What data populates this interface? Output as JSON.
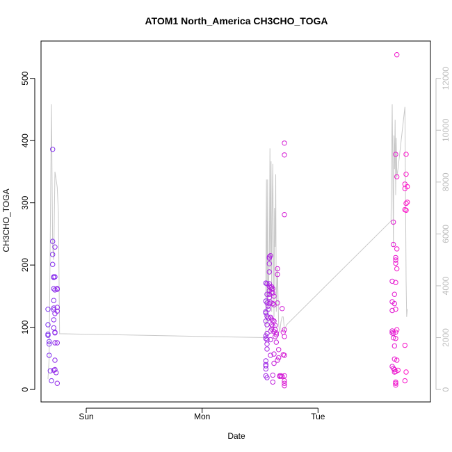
{
  "chart_data": {
    "type": "scatter",
    "title": "ATOM1 North_America CH3CHO_TOGA",
    "xlabel": "Date",
    "ylabel": "CH3CHO_TOGA",
    "x_ticks": [
      {
        "label": "Sun",
        "day": 0
      },
      {
        "label": "Mon",
        "day": 1
      },
      {
        "label": "Tue",
        "day": 2
      }
    ],
    "xlim_days": [
      -0.39,
      2.97
    ],
    "ylim": [
      -20,
      560
    ],
    "y_ticks": [
      0,
      100,
      200,
      300,
      400,
      500
    ],
    "right_axis": {
      "ticks": [
        0,
        2000,
        4000,
        6000,
        8000,
        10000,
        12000
      ],
      "ylim": [
        -480,
        13440
      ],
      "color": "#bdbdbd"
    },
    "box": true,
    "grid": false,
    "legend": "none",
    "point_color_start": "#7a2ff0",
    "point_color_end": "#ff14c8",
    "line_color": "#c8c8c8",
    "points": [
      [
        -0.33,
        129
      ],
      [
        -0.33,
        104
      ],
      [
        -0.33,
        89
      ],
      [
        -0.33,
        87
      ],
      [
        -0.32,
        77
      ],
      [
        -0.32,
        73
      ],
      [
        -0.32,
        55
      ],
      [
        -0.31,
        30
      ],
      [
        -0.3,
        14
      ],
      [
        -0.29,
        386
      ],
      [
        -0.29,
        238
      ],
      [
        -0.29,
        217
      ],
      [
        -0.29,
        201
      ],
      [
        -0.28,
        181
      ],
      [
        -0.28,
        180
      ],
      [
        -0.28,
        162
      ],
      [
        -0.28,
        143
      ],
      [
        -0.28,
        131
      ],
      [
        -0.28,
        128
      ],
      [
        -0.28,
        112
      ],
      [
        -0.28,
        99
      ],
      [
        -0.27,
        229
      ],
      [
        -0.27,
        181
      ],
      [
        -0.27,
        160
      ],
      [
        -0.27,
        122
      ],
      [
        -0.27,
        92
      ],
      [
        -0.27,
        91
      ],
      [
        -0.27,
        75
      ],
      [
        -0.27,
        47
      ],
      [
        -0.27,
        32
      ],
      [
        -0.26,
        27
      ],
      [
        -0.25,
        162
      ],
      [
        -0.25,
        161
      ],
      [
        -0.25,
        132
      ],
      [
        -0.25,
        126
      ],
      [
        -0.25,
        75
      ],
      [
        -0.25,
        10
      ],
      [
        -0.28,
        31
      ],
      [
        1.55,
        171
      ],
      [
        1.55,
        142
      ],
      [
        1.55,
        125
      ],
      [
        1.55,
        123
      ],
      [
        1.55,
        110
      ],
      [
        1.55,
        86
      ],
      [
        1.55,
        82
      ],
      [
        1.55,
        46
      ],
      [
        1.55,
        40
      ],
      [
        1.55,
        38
      ],
      [
        1.55,
        33
      ],
      [
        1.55,
        22
      ],
      [
        1.56,
        19
      ],
      [
        1.56,
        170
      ],
      [
        1.56,
        153
      ],
      [
        1.56,
        139
      ],
      [
        1.56,
        118
      ],
      [
        1.56,
        104
      ],
      [
        1.56,
        90
      ],
      [
        1.56,
        80
      ],
      [
        1.56,
        73
      ],
      [
        1.56,
        65
      ],
      [
        1.57,
        134
      ],
      [
        1.57,
        129
      ],
      [
        1.57,
        115
      ],
      [
        1.58,
        213
      ],
      [
        1.58,
        211
      ],
      [
        1.58,
        202
      ],
      [
        1.58,
        189
      ],
      [
        1.58,
        170
      ],
      [
        1.58,
        166
      ],
      [
        1.58,
        159
      ],
      [
        1.58,
        153
      ],
      [
        1.58,
        148
      ],
      [
        1.58,
        138
      ],
      [
        1.59,
        215
      ],
      [
        1.59,
        164
      ],
      [
        1.59,
        140
      ],
      [
        1.59,
        116
      ],
      [
        1.59,
        94
      ],
      [
        1.59,
        80
      ],
      [
        1.59,
        55
      ],
      [
        1.6,
        165
      ],
      [
        1.6,
        161
      ],
      [
        1.6,
        156
      ],
      [
        1.6,
        113
      ],
      [
        1.6,
        104
      ],
      [
        1.6,
        97
      ],
      [
        1.61,
        162
      ],
      [
        1.61,
        155
      ],
      [
        1.61,
        138
      ],
      [
        1.61,
        111
      ],
      [
        1.61,
        102
      ],
      [
        1.61,
        23
      ],
      [
        1.61,
        12
      ],
      [
        1.62,
        150
      ],
      [
        1.62,
        136
      ],
      [
        1.62,
        110
      ],
      [
        1.62,
        93
      ],
      [
        1.62,
        57
      ],
      [
        1.62,
        42
      ],
      [
        1.63,
        103
      ],
      [
        1.63,
        96
      ],
      [
        1.63,
        85
      ],
      [
        1.64,
        76
      ],
      [
        1.64,
        88
      ],
      [
        1.64,
        91
      ],
      [
        1.65,
        47
      ],
      [
        1.65,
        139
      ],
      [
        1.65,
        185
      ],
      [
        1.65,
        194
      ],
      [
        1.66,
        51
      ],
      [
        1.66,
        64
      ],
      [
        1.67,
        22
      ],
      [
        1.67,
        21
      ],
      [
        1.68,
        22
      ],
      [
        1.69,
        130
      ],
      [
        1.69,
        21
      ],
      [
        1.7,
        92
      ],
      [
        1.7,
        56
      ],
      [
        1.71,
        281
      ],
      [
        1.71,
        396
      ],
      [
        1.71,
        377
      ],
      [
        1.71,
        96
      ],
      [
        1.71,
        85
      ],
      [
        1.71,
        55
      ],
      [
        1.71,
        22
      ],
      [
        1.71,
        14
      ],
      [
        1.71,
        10
      ],
      [
        1.71,
        6
      ],
      [
        2.64,
        174
      ],
      [
        2.64,
        141
      ],
      [
        2.64,
        127
      ],
      [
        2.64,
        94
      ],
      [
        2.64,
        91
      ],
      [
        2.64,
        37
      ],
      [
        2.65,
        269
      ],
      [
        2.65,
        233
      ],
      [
        2.65,
        90
      ],
      [
        2.65,
        83
      ],
      [
        2.65,
        34
      ],
      [
        2.66,
        153
      ],
      [
        2.66,
        138
      ],
      [
        2.66,
        70
      ],
      [
        2.66,
        49
      ],
      [
        2.66,
        32
      ],
      [
        2.66,
        28
      ],
      [
        2.67,
        378
      ],
      [
        2.67,
        212
      ],
      [
        2.67,
        208
      ],
      [
        2.67,
        203
      ],
      [
        2.67,
        172
      ],
      [
        2.67,
        129
      ],
      [
        2.67,
        92
      ],
      [
        2.67,
        82
      ],
      [
        2.67,
        29
      ],
      [
        2.67,
        12
      ],
      [
        2.67,
        10
      ],
      [
        2.67,
        7
      ],
      [
        2.68,
        538
      ],
      [
        2.68,
        342
      ],
      [
        2.68,
        226
      ],
      [
        2.68,
        194
      ],
      [
        2.68,
        96
      ],
      [
        2.68,
        47
      ],
      [
        2.69,
        31
      ],
      [
        2.75,
        14
      ],
      [
        2.75,
        71
      ],
      [
        2.75,
        330
      ],
      [
        2.75,
        323
      ],
      [
        2.75,
        289
      ],
      [
        2.76,
        378
      ],
      [
        2.76,
        346
      ],
      [
        2.76,
        299
      ],
      [
        2.76,
        288
      ],
      [
        2.77,
        326
      ],
      [
        2.77,
        301
      ],
      [
        2.76,
        28
      ]
    ],
    "right_series": [
      [
        -0.33,
        400
      ],
      [
        -0.32,
        1200
      ],
      [
        -0.3,
        11000
      ],
      [
        -0.29,
        5500
      ],
      [
        -0.28,
        5000
      ],
      [
        -0.27,
        8400
      ],
      [
        -0.26,
        8100
      ],
      [
        -0.25,
        7800
      ],
      [
        -0.24,
        6800
      ],
      [
        -0.23,
        2150
      ],
      [
        1.55,
        2000
      ],
      [
        1.55,
        4500
      ],
      [
        1.555,
        8100
      ],
      [
        1.56,
        2500
      ],
      [
        1.565,
        8100
      ],
      [
        1.57,
        3500
      ],
      [
        1.58,
        5000
      ],
      [
        1.585,
        9300
      ],
      [
        1.59,
        4500
      ],
      [
        1.595,
        8800
      ],
      [
        1.6,
        3000
      ],
      [
        1.605,
        7200
      ],
      [
        1.61,
        8700
      ],
      [
        1.62,
        2800
      ],
      [
        1.625,
        7000
      ],
      [
        1.63,
        5500
      ],
      [
        1.635,
        8300
      ],
      [
        1.64,
        3000
      ],
      [
        1.65,
        4700
      ],
      [
        1.66,
        2500
      ],
      [
        1.67,
        2200
      ],
      [
        1.68,
        2600
      ],
      [
        1.69,
        2800
      ],
      [
        1.7,
        2800
      ],
      [
        1.71,
        2300
      ],
      [
        1.73,
        2500
      ],
      [
        2.63,
        6500
      ],
      [
        2.64,
        11000
      ],
      [
        2.645,
        8700
      ],
      [
        2.65,
        5500
      ],
      [
        2.655,
        9800
      ],
      [
        2.66,
        8500
      ],
      [
        2.665,
        10400
      ],
      [
        2.67,
        7500
      ],
      [
        2.675,
        9700
      ],
      [
        2.68,
        8200
      ],
      [
        2.69,
        8500
      ],
      [
        2.72,
        9700
      ],
      [
        2.75,
        10900
      ],
      [
        2.76,
        4200
      ],
      [
        2.765,
        2800
      ],
      [
        2.77,
        3100
      ]
    ]
  }
}
